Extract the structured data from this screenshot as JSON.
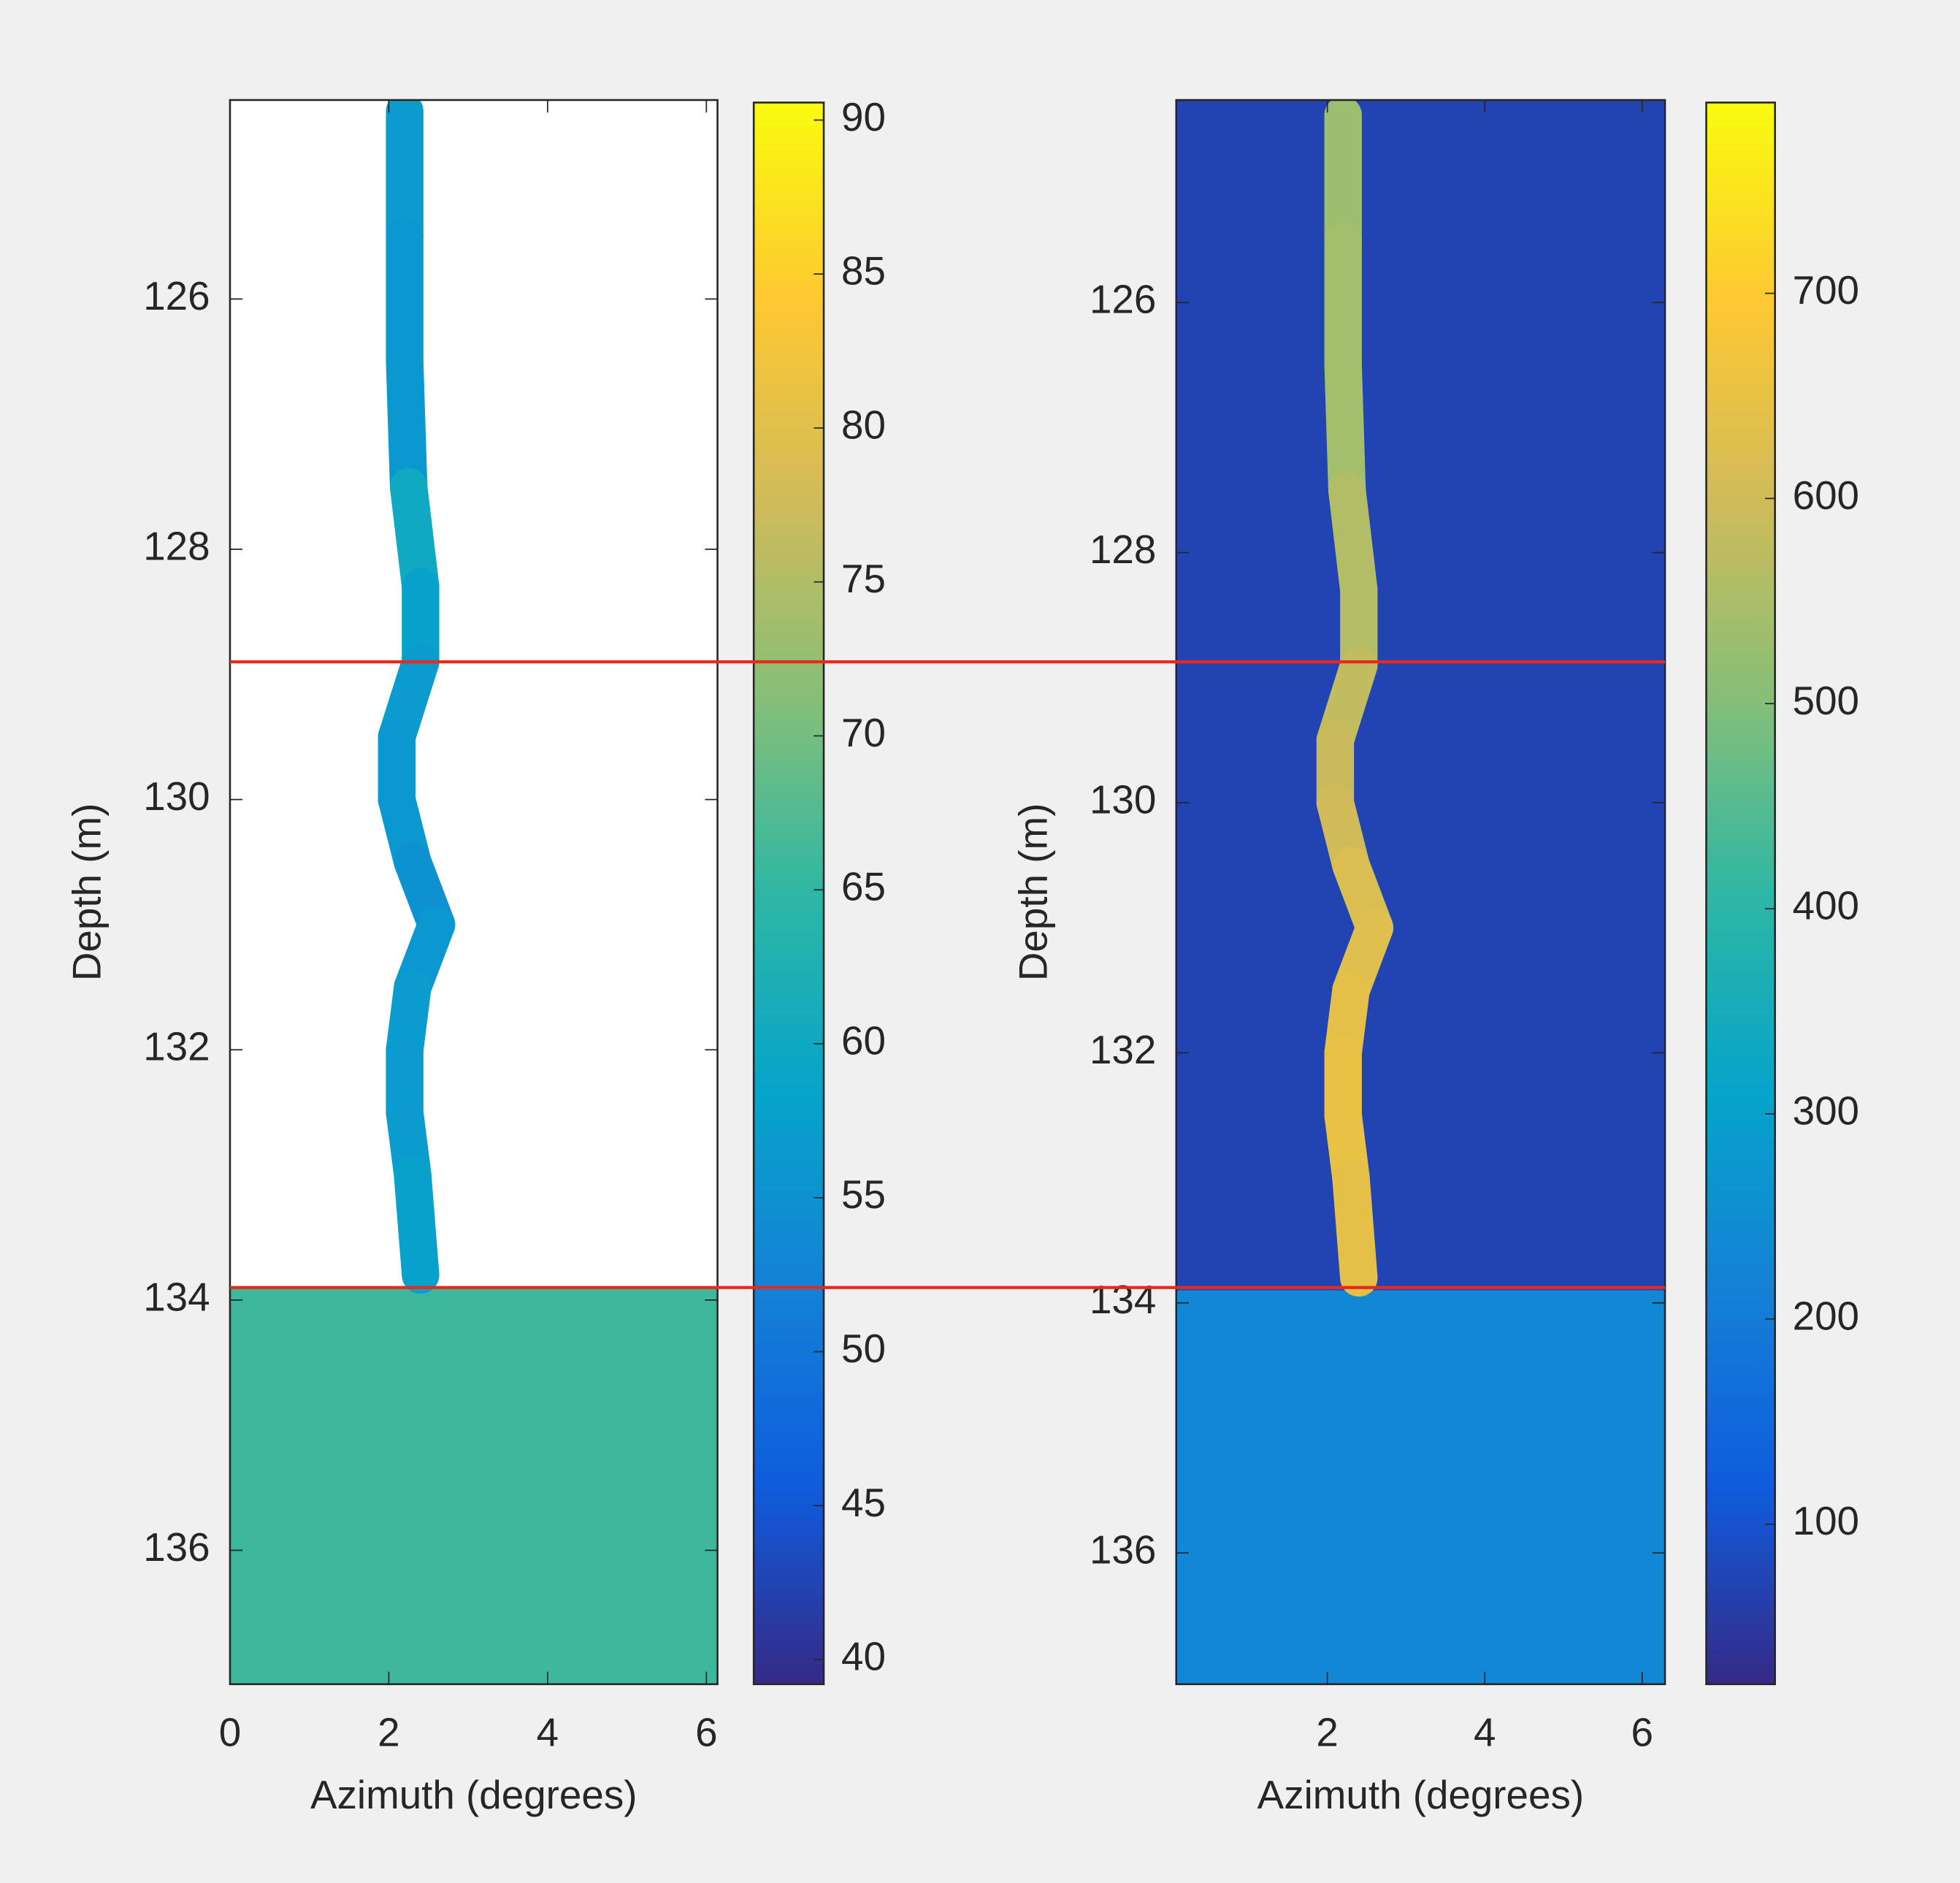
{
  "chart_data": [
    {
      "type": "heatmap",
      "xlabel": "Azimuth (degrees)",
      "ylabel": "Depth (m)",
      "colormap": "parula",
      "xlim": [
        0,
        6.14
      ],
      "ylim": [
        124.41,
        137.07
      ],
      "xticks": [
        0,
        2,
        4,
        6
      ],
      "yticks": [
        126,
        128,
        130,
        132,
        134,
        136
      ],
      "clim": [
        39.2,
        90.57
      ],
      "cticks": [
        40,
        45,
        50,
        55,
        60,
        65,
        70,
        75,
        80,
        85,
        90
      ],
      "trace": {
        "depth": [
          124.5,
          125.5,
          126.5,
          127.5,
          128.3,
          128.9,
          129.5,
          130,
          130.5,
          131,
          131.5,
          132,
          132.5,
          133,
          133.8
        ],
        "azimuth": [
          2.2,
          2.2,
          2.2,
          2.25,
          2.4,
          2.4,
          2.1,
          2.1,
          2.3,
          2.6,
          2.3,
          2.2,
          2.2,
          2.3,
          2.4
        ],
        "values": [
          57,
          57,
          56,
          56,
          60,
          58,
          57,
          56,
          56,
          55,
          56,
          57,
          57,
          57,
          58
        ]
      },
      "zones": [
        {
          "from": 133.9,
          "to": 137.07,
          "value": 66
        }
      ],
      "hlines": {
        "values": [
          128.9,
          133.9
        ],
        "color": "#e8291c"
      }
    },
    {
      "type": "heatmap",
      "xlabel": "Azimuth (degrees)",
      "ylabel": "Depth (m)",
      "colormap": "parula",
      "xlim": [
        0.08,
        6.29
      ],
      "ylim": [
        124.38,
        137.05
      ],
      "xticks": [
        2,
        4,
        6
      ],
      "yticks": [
        126,
        128,
        130,
        132,
        134,
        136
      ],
      "clim": [
        22,
        793
      ],
      "cticks": [
        100,
        200,
        300,
        400,
        500,
        600,
        700
      ],
      "background": 70,
      "trace": {
        "depth": [
          124.5,
          125.5,
          126.5,
          127.5,
          128.3,
          128.9,
          129.5,
          130,
          130.5,
          131,
          131.5,
          132,
          132.5,
          133,
          133.8
        ],
        "azimuth": [
          2.2,
          2.2,
          2.2,
          2.25,
          2.4,
          2.4,
          2.1,
          2.1,
          2.3,
          2.6,
          2.3,
          2.2,
          2.2,
          2.3,
          2.4
        ],
        "values": [
          520,
          530,
          540,
          540,
          560,
          560,
          580,
          590,
          600,
          620,
          630,
          640,
          650,
          650,
          640
        ]
      },
      "zones": [
        {
          "from": 133.9,
          "to": 137.05,
          "value": 230
        }
      ]
    }
  ]
}
